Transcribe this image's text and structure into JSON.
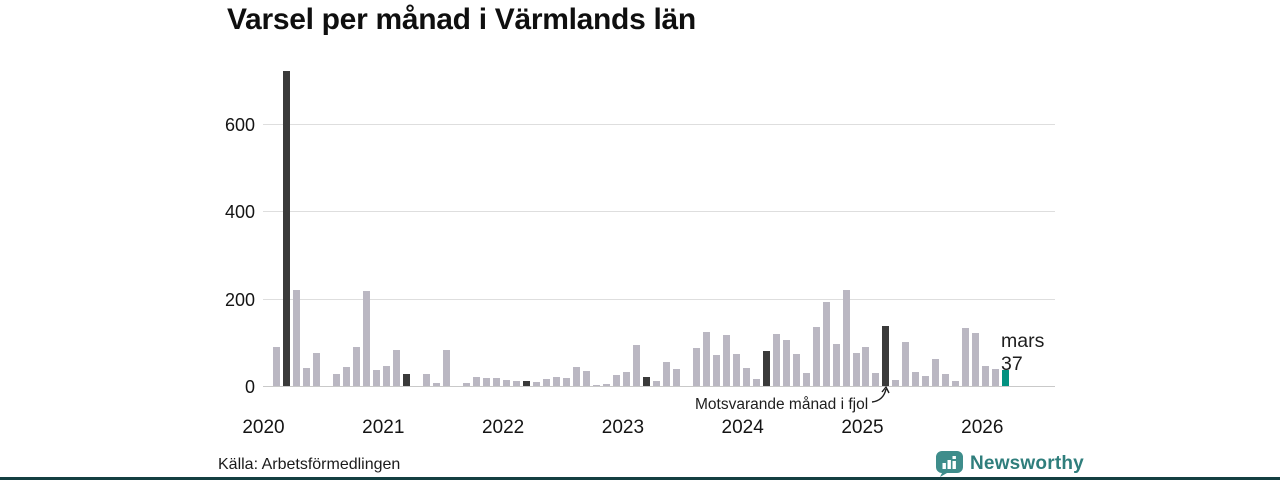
{
  "title": "Varsel per månad i Värmlands län",
  "source": "Källa: Arbetsförmedlingen",
  "logo": {
    "text": "Newsworthy"
  },
  "annotation": {
    "text": "Motsvarande månad i fjol",
    "points_to": "2025-03"
  },
  "latest_label": {
    "month": "mars",
    "value": "37"
  },
  "colors": {
    "bar": "#bab7c2",
    "highlight_dark": "#3a3a3a",
    "latest_teal": "#019180",
    "grid": "#dedede",
    "axis": "#c9c9c9",
    "brand_teal": "#3e8d8b",
    "brand_text": "#2f7e7c",
    "footer_strip": "#143f41",
    "annotation_ink": "#1e1e1e"
  },
  "chart_data": {
    "type": "bar",
    "title": "Varsel per månad i Värmlands län",
    "xlabel": "",
    "ylabel": "",
    "x_start": "2020-01",
    "x_end": "2026-03",
    "y_ticks": [
      0,
      200,
      400,
      600
    ],
    "ylim": [
      0,
      725
    ],
    "grid": true,
    "legend": false,
    "year_labels": [
      "2020",
      "2021",
      "2022",
      "2023",
      "2024",
      "2025",
      "2026"
    ],
    "series": [
      {
        "name": "Varsel per månad",
        "values": [
          0,
          90,
          720,
          220,
          42,
          75,
          0,
          27,
          44,
          89,
          217,
          37,
          46,
          82,
          28,
          0,
          28,
          8,
          82,
          0,
          7,
          20,
          18,
          18,
          14,
          12,
          12,
          10,
          16,
          21,
          18,
          44,
          35,
          2,
          4,
          25,
          33,
          93,
          20,
          12,
          56,
          40,
          0,
          88,
          123,
          70,
          116,
          73,
          42,
          16,
          80,
          118,
          105,
          73,
          30,
          136,
          192,
          96,
          220,
          76,
          89,
          30,
          138,
          14,
          100,
          31,
          23,
          61,
          27,
          12,
          133,
          122,
          46,
          40,
          37
        ]
      }
    ],
    "highlight_dark_indices": [
      2,
      14,
      26,
      38,
      50,
      62
    ],
    "highlight_dark_meaning": "mars varje år (motsvarande månad)",
    "highlight_latest_index": 74,
    "highlight_latest_meaning": "mars 2026 = 37"
  }
}
